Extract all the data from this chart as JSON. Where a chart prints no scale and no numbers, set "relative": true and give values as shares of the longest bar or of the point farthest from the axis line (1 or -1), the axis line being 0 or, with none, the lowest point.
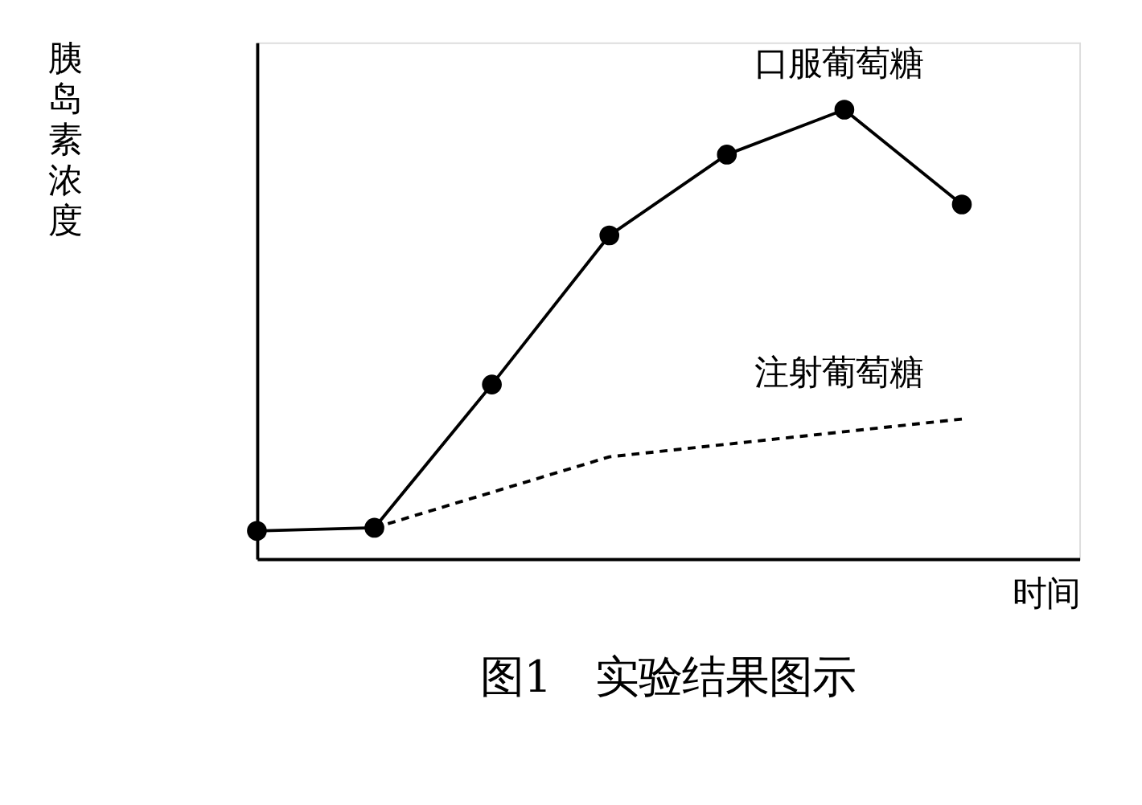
{
  "chart_data": {
    "type": "line",
    "title": "图1　实验结果图示",
    "xlabel": "时间",
    "ylabel": "胰岛素浓度",
    "relative": true,
    "categories": [
      null,
      null,
      null,
      null,
      null,
      null,
      null
    ],
    "grid": false,
    "tick_labels": false,
    "series": [
      {
        "name": "口服葡萄糖",
        "color": "#000000",
        "marker": "circle",
        "line_style": "solid",
        "values": [
          0.062,
          0.069,
          0.388,
          0.72,
          0.9,
          1.0,
          0.789
        ]
      },
      {
        "name": "注射葡萄糖",
        "color": "#000000",
        "marker": "none",
        "line_style": "dashed",
        "values": [
          null,
          0.069,
          null,
          0.227,
          null,
          null,
          0.311
        ]
      }
    ]
  }
}
